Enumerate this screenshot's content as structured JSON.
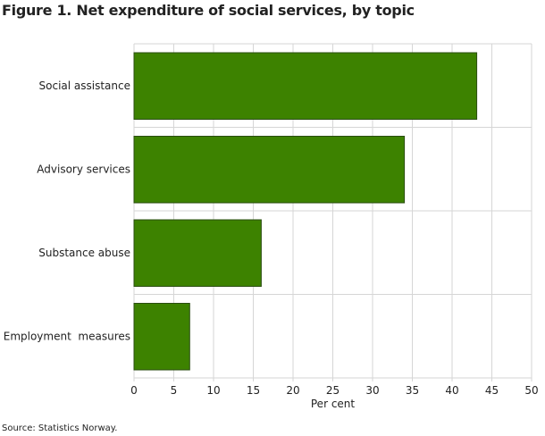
{
  "chart_data": {
    "type": "bar",
    "orientation": "horizontal",
    "title": "Figure 1. Net expenditure of social services, by topic",
    "categories": [
      "Social assistance",
      "Advisory services",
      "Substance abuse",
      "Employment  measures"
    ],
    "values": [
      43.1,
      34.0,
      16.0,
      7.0
    ],
    "xlabel": "Per cent",
    "ylabel": "",
    "xlim": [
      0,
      50
    ],
    "xticks": [
      0,
      5,
      10,
      15,
      20,
      25,
      30,
      35,
      40,
      45,
      50
    ],
    "grid": true,
    "bar_color": "#3d8200",
    "bar_border": "#2a4d10",
    "grid_color": "#d6d6d6",
    "source": "Source: Statistics Norway."
  }
}
